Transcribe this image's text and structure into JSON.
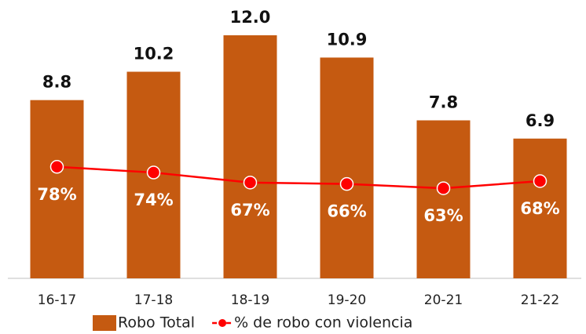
{
  "chart_data": {
    "type": "bar",
    "categories": [
      "16-17",
      "17-18",
      "18-19",
      "19-20",
      "20-21",
      "21-22"
    ],
    "series": [
      {
        "name": "Robo Total",
        "type": "bar",
        "color": "#c55a11",
        "values": [
          8.8,
          10.2,
          12.0,
          10.9,
          7.8,
          6.9
        ],
        "value_labels": [
          "8.8",
          "10.2",
          "12.0",
          "10.9",
          "7.8",
          "6.9"
        ]
      },
      {
        "name": "% de robo con violencia",
        "type": "line",
        "axis": "y2",
        "color": "#ff0000",
        "values": [
          78,
          74,
          67,
          66,
          63,
          68
        ],
        "value_labels": [
          "78%",
          "74%",
          "67%",
          "66%",
          "63%",
          "68%"
        ]
      }
    ],
    "ylim": [
      0,
      12
    ],
    "y2lim": [
      0,
      170
    ],
    "legend": "bottom"
  }
}
